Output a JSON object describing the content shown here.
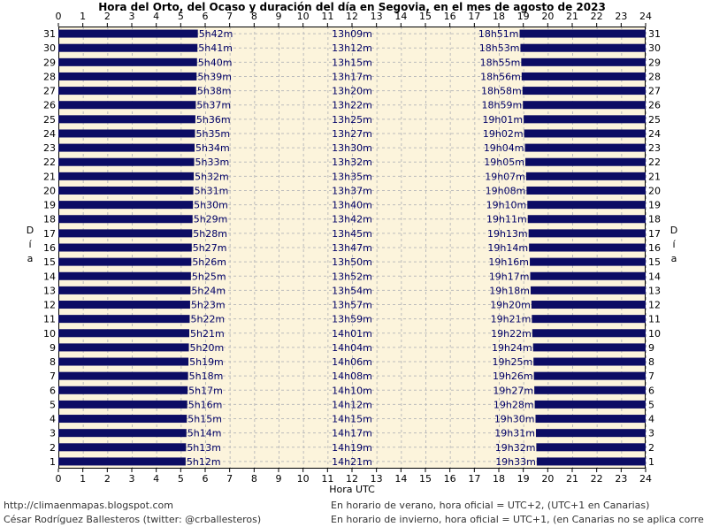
{
  "chart_data": {
    "type": "bar",
    "title": "Hora del Orto, del Ocaso y duración del día en Segovia, en el mes de agosto de 2023",
    "xlabel": "Hora UTC",
    "ylabel": "Día",
    "xlim": [
      0,
      24
    ],
    "x_ticks": [
      "0",
      "1",
      "2",
      "3",
      "4",
      "5",
      "6",
      "7",
      "8",
      "9",
      "10",
      "11",
      "12",
      "13",
      "14",
      "15",
      "16",
      "17",
      "18",
      "19",
      "20",
      "21",
      "22",
      "23",
      "24"
    ],
    "grid": true,
    "days": [
      1,
      2,
      3,
      4,
      5,
      6,
      7,
      8,
      9,
      10,
      11,
      12,
      13,
      14,
      15,
      16,
      17,
      18,
      19,
      20,
      21,
      22,
      23,
      24,
      25,
      26,
      27,
      28,
      29,
      30,
      31
    ],
    "sunrise": [
      "5h12m",
      "5h13m",
      "5h14m",
      "5h15m",
      "5h16m",
      "5h17m",
      "5h18m",
      "5h19m",
      "5h20m",
      "5h21m",
      "5h22m",
      "5h23m",
      "5h24m",
      "5h25m",
      "5h26m",
      "5h27m",
      "5h28m",
      "5h29m",
      "5h30m",
      "5h31m",
      "5h32m",
      "5h33m",
      "5h34m",
      "5h35m",
      "5h36m",
      "5h37m",
      "5h38m",
      "5h39m",
      "5h40m",
      "5h41m",
      "5h42m"
    ],
    "daylength": [
      "14h21m",
      "14h19m",
      "14h17m",
      "14h15m",
      "14h12m",
      "14h10m",
      "14h08m",
      "14h06m",
      "14h04m",
      "14h01m",
      "13h59m",
      "13h57m",
      "13h54m",
      "13h52m",
      "13h50m",
      "13h47m",
      "13h45m",
      "13h42m",
      "13h40m",
      "13h37m",
      "13h35m",
      "13h32m",
      "13h30m",
      "13h27m",
      "13h25m",
      "13h22m",
      "13h20m",
      "13h17m",
      "13h15m",
      "13h12m",
      "13h09m"
    ],
    "sunset": [
      "19h33m",
      "19h32m",
      "19h31m",
      "19h30m",
      "19h28m",
      "19h27m",
      "19h26m",
      "19h25m",
      "19h24m",
      "19h22m",
      "19h21m",
      "19h20m",
      "19h18m",
      "19h17m",
      "19h16m",
      "19h14m",
      "19h13m",
      "19h11m",
      "19h10m",
      "19h08m",
      "19h07m",
      "19h05m",
      "19h04m",
      "19h02m",
      "19h01m",
      "18h59m",
      "18h58m",
      "18h56m",
      "18h55m",
      "18h53m",
      "18h51m"
    ],
    "colors": {
      "night": "#0c0c64",
      "day": "#fcf4dc",
      "grid": "#bcbcbc",
      "text_values": "#000066"
    }
  },
  "footer": {
    "site": "http://climaenmapas.blogspot.com",
    "author": "César Rodríguez Ballesteros (twitter: @crballesteros)",
    "summer_note": "En horario de verano, hora oficial = UTC+2, (UTC+1 en Canarias)",
    "winter_note": "En horario de invierno, hora oficial = UTC+1, (en Canarias no se aplica corrección)"
  }
}
